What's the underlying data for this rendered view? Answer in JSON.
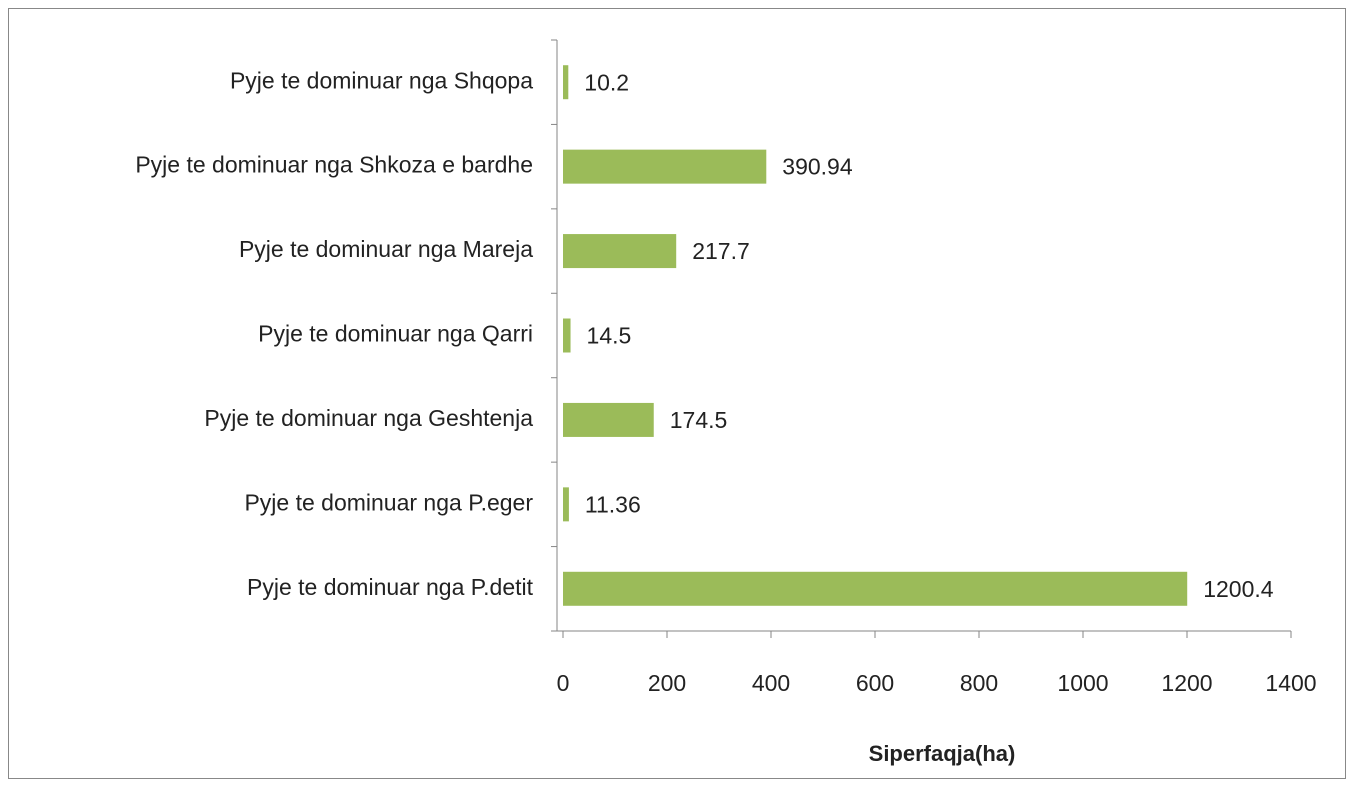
{
  "chart_data": {
    "type": "hbar",
    "categories": [
      "Pyje te dominuar nga Shqopa",
      "Pyje te dominuar nga Shkoza e bardhe",
      "Pyje te dominuar nga Mareja",
      "Pyje te dominuar nga Qarri",
      "Pyje te dominuar nga Geshtenja",
      "Pyje te dominuar nga P.eger",
      "Pyje te dominuar nga P.detit"
    ],
    "values": [
      10.2,
      390.94,
      217.7,
      14.5,
      174.5,
      11.36,
      1200.4
    ],
    "color": "#9bbb59",
    "xlabel": "Siperfaqja(ha)",
    "xlim": [
      0,
      1400
    ],
    "xticks": [
      0,
      200,
      400,
      600,
      800,
      1000,
      1200,
      1400
    ],
    "grid": false
  }
}
